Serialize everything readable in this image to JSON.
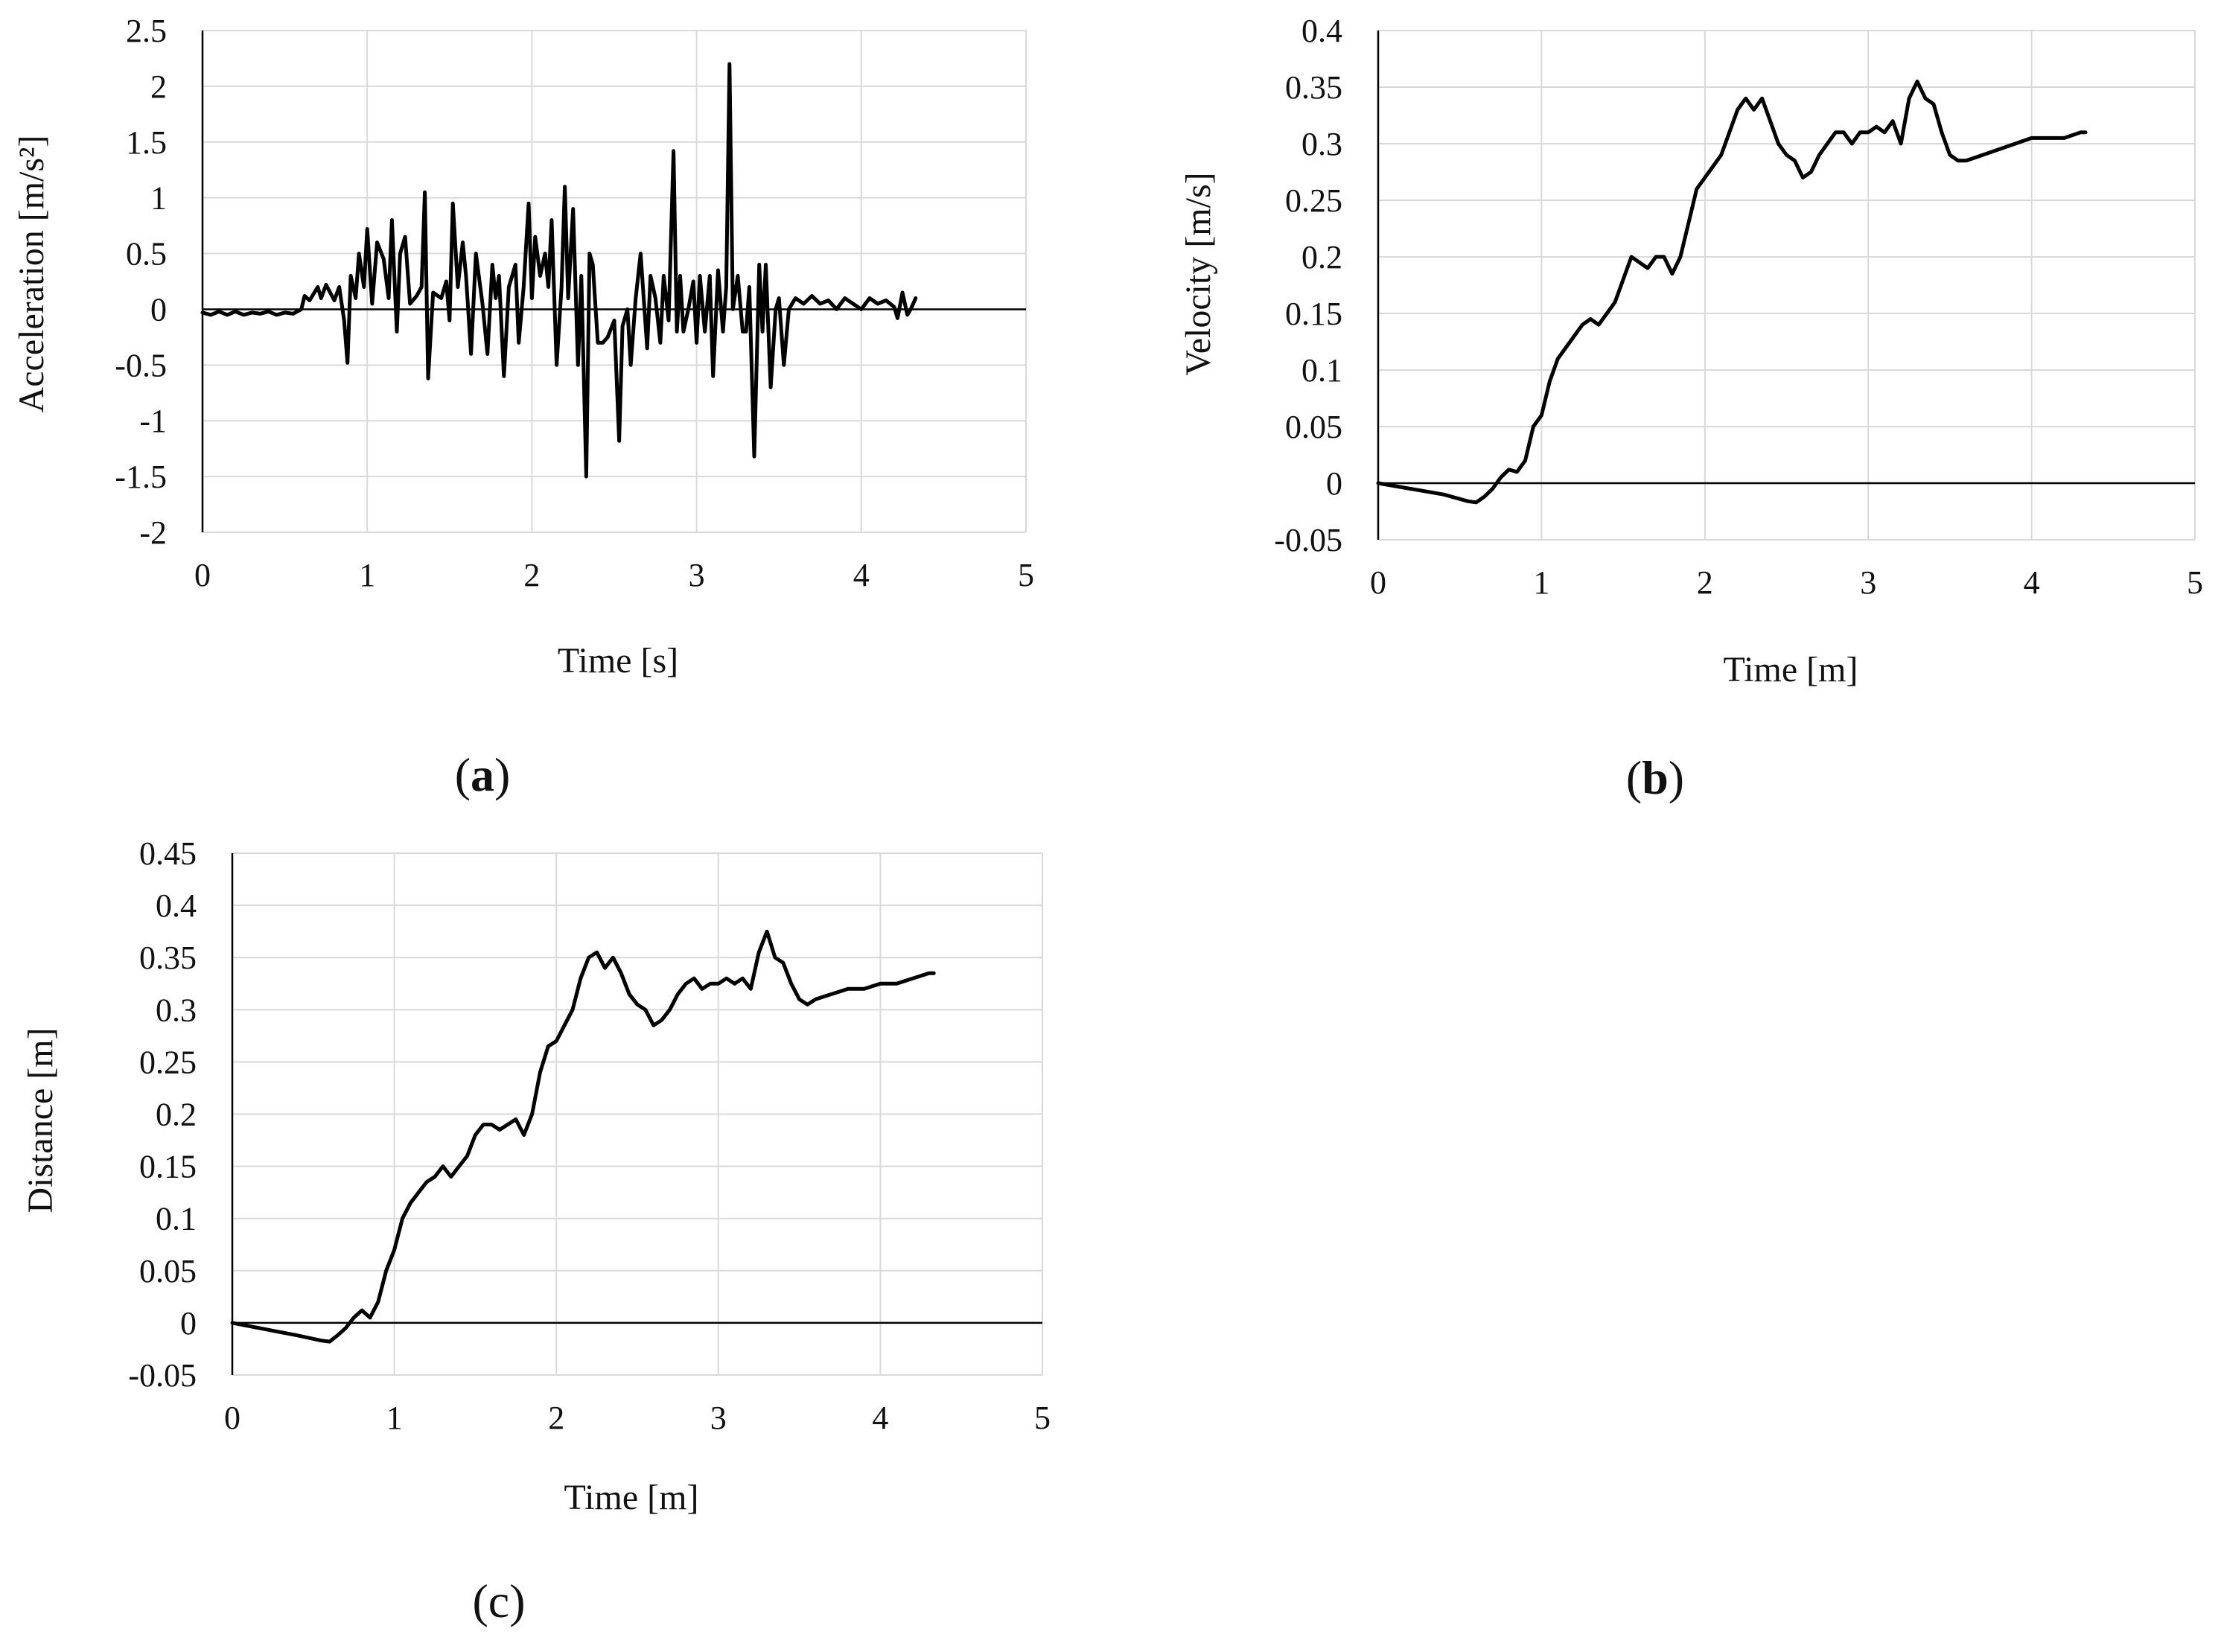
{
  "figure": {
    "background": "#ffffff",
    "line_color": "#000000",
    "grid_color": "#d9d9d9"
  },
  "chart_data": [
    {
      "id": "a",
      "panel_label": "a",
      "type": "line",
      "xlabel": "Time  [s]",
      "ylabel": "Acceleration  [m/s²]",
      "xlim": [
        0,
        5
      ],
      "ylim": [
        -2,
        2.5
      ],
      "xticks": [
        0,
        1,
        2,
        3,
        4,
        5
      ],
      "yticks": [
        -2,
        -1.5,
        -1,
        -0.5,
        0,
        0.5,
        1,
        1.5,
        2,
        2.5
      ],
      "ytick_labels": [
        "-2",
        "-1.5",
        "-1",
        "-0.5",
        "0",
        "0.5",
        "1",
        "1.5",
        "2",
        "2.5"
      ],
      "grid": true,
      "series": [
        {
          "x": [
            0,
            0.05,
            0.1,
            0.15,
            0.2,
            0.25,
            0.3,
            0.35,
            0.4,
            0.45,
            0.5,
            0.55,
            0.6,
            0.62,
            0.65,
            0.7,
            0.72,
            0.75,
            0.8,
            0.83,
            0.86,
            0.88,
            0.9,
            0.93,
            0.95,
            0.98,
            1.0,
            1.03,
            1.06,
            1.1,
            1.13,
            1.15,
            1.18,
            1.2,
            1.23,
            1.26,
            1.3,
            1.33,
            1.35,
            1.37,
            1.4,
            1.45,
            1.48,
            1.5,
            1.52,
            1.55,
            1.58,
            1.6,
            1.63,
            1.66,
            1.7,
            1.73,
            1.76,
            1.78,
            1.8,
            1.83,
            1.86,
            1.9,
            1.92,
            1.95,
            1.98,
            2.0,
            2.02,
            2.05,
            2.08,
            2.1,
            2.12,
            2.15,
            2.18,
            2.2,
            2.22,
            2.25,
            2.28,
            2.3,
            2.33,
            2.35,
            2.37,
            2.4,
            2.43,
            2.46,
            2.5,
            2.53,
            2.55,
            2.58,
            2.6,
            2.63,
            2.66,
            2.7,
            2.72,
            2.75,
            2.78,
            2.8,
            2.83,
            2.86,
            2.88,
            2.9,
            2.92,
            2.95,
            2.98,
            3.0,
            3.02,
            3.05,
            3.08,
            3.1,
            3.13,
            3.16,
            3.18,
            3.2,
            3.22,
            3.25,
            3.28,
            3.3,
            3.32,
            3.35,
            3.38,
            3.4,
            3.42,
            3.45,
            3.48,
            3.5,
            3.53,
            3.56,
            3.6,
            3.65,
            3.7,
            3.75,
            3.8,
            3.85,
            3.9,
            3.95,
            4.0,
            4.05,
            4.1,
            4.15,
            4.2,
            4.22,
            4.25,
            4.28,
            4.3,
            4.33
          ],
          "y": [
            -0.03,
            -0.05,
            -0.02,
            -0.05,
            -0.02,
            -0.05,
            -0.03,
            -0.04,
            -0.02,
            -0.05,
            -0.03,
            -0.04,
            0.0,
            0.12,
            0.08,
            0.2,
            0.1,
            0.22,
            0.08,
            0.2,
            -0.1,
            -0.48,
            0.3,
            0.1,
            0.5,
            0.2,
            0.72,
            0.05,
            0.6,
            0.45,
            0.1,
            0.8,
            -0.2,
            0.5,
            0.65,
            0.05,
            0.12,
            0.2,
            1.05,
            -0.62,
            0.15,
            0.1,
            0.25,
            -0.1,
            0.95,
            0.2,
            0.6,
            0.3,
            -0.4,
            0.5,
            0.05,
            -0.4,
            0.4,
            0.1,
            0.3,
            -0.6,
            0.2,
            0.4,
            -0.3,
            0.2,
            0.95,
            0.1,
            0.65,
            0.3,
            0.5,
            0.2,
            0.8,
            -0.5,
            0.2,
            1.1,
            0.1,
            0.9,
            -0.5,
            0.3,
            -1.5,
            0.5,
            0.4,
            -0.3,
            -0.3,
            -0.25,
            -0.1,
            -1.18,
            -0.15,
            0.0,
            -0.5,
            0.1,
            0.5,
            -0.35,
            0.3,
            0.1,
            -0.3,
            0.3,
            -0.1,
            1.42,
            -0.2,
            0.3,
            -0.2,
            0.0,
            0.25,
            -0.3,
            0.3,
            -0.2,
            0.3,
            -0.6,
            0.35,
            -0.2,
            0.2,
            2.2,
            0.0,
            0.3,
            -0.2,
            -0.2,
            0.2,
            -1.32,
            0.4,
            -0.2,
            0.4,
            -0.7,
            0.0,
            0.1,
            -0.5,
            0.0,
            0.1,
            0.05,
            0.12,
            0.05,
            0.08,
            0.0,
            0.1,
            0.05,
            0.0,
            0.1,
            0.05,
            0.08,
            0.02,
            -0.08,
            0.15,
            -0.05,
            0.0,
            0.1
          ]
        }
      ]
    },
    {
      "id": "b",
      "panel_label": "b",
      "type": "line",
      "xlabel": "Time  [m]",
      "ylabel": "Velocity  [m/s]",
      "xlim": [
        0,
        5
      ],
      "ylim": [
        -0.05,
        0.4
      ],
      "xticks": [
        0,
        1,
        2,
        3,
        4,
        5
      ],
      "yticks": [
        -0.05,
        0,
        0.05,
        0.1,
        0.15,
        0.2,
        0.25,
        0.3,
        0.35,
        0.4
      ],
      "ytick_labels": [
        "-0.05",
        "0",
        "0.05",
        "0.1",
        "0.15",
        "0.2",
        "0.25",
        "0.3",
        "0.35",
        "0.4"
      ],
      "grid": true,
      "series": [
        {
          "x": [
            0,
            0.2,
            0.4,
            0.55,
            0.6,
            0.65,
            0.7,
            0.75,
            0.8,
            0.85,
            0.9,
            0.95,
            1.0,
            1.05,
            1.1,
            1.15,
            1.2,
            1.25,
            1.3,
            1.35,
            1.4,
            1.45,
            1.5,
            1.55,
            1.6,
            1.65,
            1.7,
            1.75,
            1.8,
            1.85,
            1.9,
            1.95,
            2.0,
            2.05,
            2.1,
            2.15,
            2.2,
            2.25,
            2.3,
            2.35,
            2.4,
            2.45,
            2.5,
            2.55,
            2.6,
            2.65,
            2.7,
            2.75,
            2.8,
            2.85,
            2.9,
            2.95,
            3.0,
            3.05,
            3.1,
            3.15,
            3.2,
            3.25,
            3.3,
            3.35,
            3.4,
            3.45,
            3.5,
            3.55,
            3.6,
            3.7,
            3.8,
            3.9,
            4.0,
            4.1,
            4.2,
            4.3,
            4.33
          ],
          "y": [
            0.0,
            -0.005,
            -0.01,
            -0.016,
            -0.017,
            -0.012,
            -0.005,
            0.005,
            0.012,
            0.01,
            0.02,
            0.05,
            0.06,
            0.09,
            0.11,
            0.12,
            0.13,
            0.14,
            0.145,
            0.14,
            0.15,
            0.16,
            0.18,
            0.2,
            0.195,
            0.19,
            0.2,
            0.2,
            0.185,
            0.2,
            0.23,
            0.26,
            0.27,
            0.28,
            0.29,
            0.31,
            0.33,
            0.34,
            0.33,
            0.34,
            0.32,
            0.3,
            0.29,
            0.285,
            0.27,
            0.275,
            0.29,
            0.3,
            0.31,
            0.31,
            0.3,
            0.31,
            0.31,
            0.315,
            0.31,
            0.32,
            0.3,
            0.34,
            0.355,
            0.34,
            0.335,
            0.31,
            0.29,
            0.285,
            0.285,
            0.29,
            0.295,
            0.3,
            0.305,
            0.305,
            0.305,
            0.31,
            0.31
          ]
        }
      ]
    },
    {
      "id": "c",
      "panel_label": "c",
      "type": "line",
      "xlabel": "Time  [m]",
      "ylabel": "Distance  [m]",
      "xlim": [
        0,
        5
      ],
      "ylim": [
        -0.05,
        0.45
      ],
      "xticks": [
        0,
        1,
        2,
        3,
        4,
        5
      ],
      "yticks": [
        -0.05,
        0,
        0.05,
        0.1,
        0.15,
        0.2,
        0.25,
        0.3,
        0.35,
        0.4,
        0.45
      ],
      "ytick_labels": [
        "-0.05",
        "0",
        "0.05",
        "0.1",
        "0.15",
        "0.2",
        "0.25",
        "0.3",
        "0.35",
        "0.4",
        "0.45"
      ],
      "grid": true,
      "series": [
        {
          "x": [
            0,
            0.2,
            0.4,
            0.55,
            0.6,
            0.65,
            0.7,
            0.75,
            0.8,
            0.85,
            0.9,
            0.95,
            1.0,
            1.05,
            1.1,
            1.15,
            1.2,
            1.25,
            1.3,
            1.35,
            1.4,
            1.45,
            1.5,
            1.55,
            1.6,
            1.65,
            1.7,
            1.75,
            1.8,
            1.85,
            1.9,
            1.95,
            2.0,
            2.05,
            2.1,
            2.15,
            2.2,
            2.25,
            2.3,
            2.35,
            2.4,
            2.45,
            2.5,
            2.55,
            2.6,
            2.65,
            2.7,
            2.75,
            2.8,
            2.85,
            2.9,
            2.95,
            3.0,
            3.05,
            3.1,
            3.15,
            3.2,
            3.25,
            3.3,
            3.35,
            3.4,
            3.45,
            3.5,
            3.55,
            3.6,
            3.7,
            3.8,
            3.9,
            4.0,
            4.1,
            4.2,
            4.3,
            4.33
          ],
          "y": [
            0.0,
            -0.006,
            -0.012,
            -0.017,
            -0.018,
            -0.012,
            -0.005,
            0.005,
            0.012,
            0.005,
            0.02,
            0.05,
            0.07,
            0.1,
            0.115,
            0.125,
            0.135,
            0.14,
            0.15,
            0.14,
            0.15,
            0.16,
            0.18,
            0.19,
            0.19,
            0.185,
            0.19,
            0.195,
            0.18,
            0.2,
            0.24,
            0.265,
            0.27,
            0.285,
            0.3,
            0.33,
            0.35,
            0.355,
            0.34,
            0.35,
            0.335,
            0.315,
            0.305,
            0.3,
            0.285,
            0.29,
            0.3,
            0.315,
            0.325,
            0.33,
            0.32,
            0.325,
            0.325,
            0.33,
            0.325,
            0.33,
            0.32,
            0.355,
            0.375,
            0.35,
            0.345,
            0.325,
            0.31,
            0.305,
            0.31,
            0.315,
            0.32,
            0.32,
            0.325,
            0.325,
            0.33,
            0.335,
            0.335
          ]
        }
      ]
    }
  ]
}
